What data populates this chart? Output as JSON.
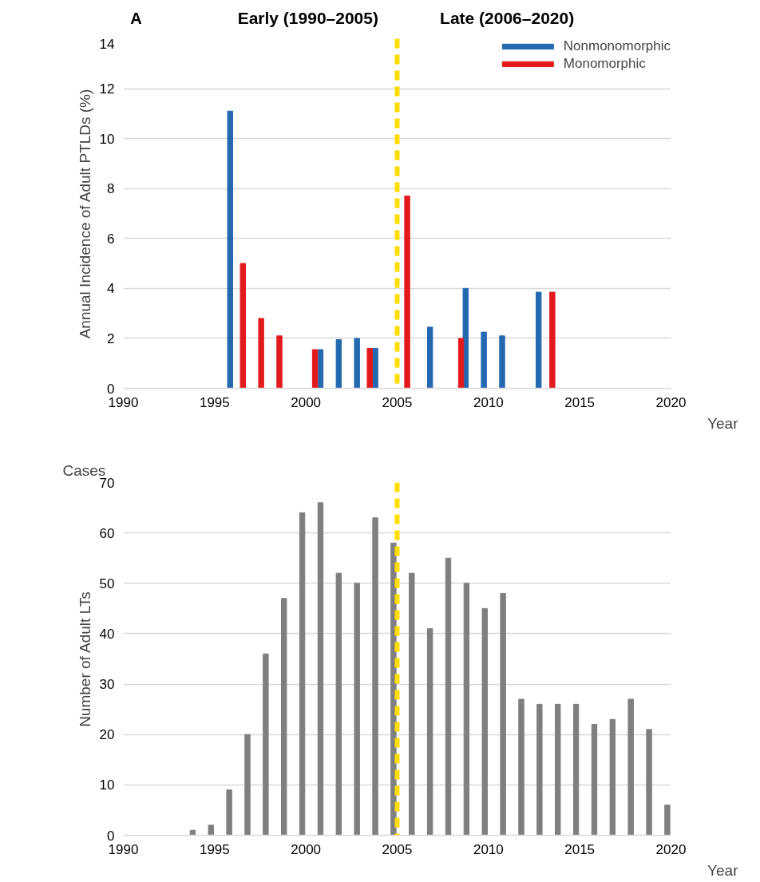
{
  "chart_data": [
    {
      "type": "bar",
      "ylabel": "Annual Incidence of Adult PTLDs (%)",
      "xlabel": "Year",
      "annotations": [
        "A",
        "Early (1990–2005)",
        "Late (2006–2020)"
      ],
      "series": [
        {
          "name": "Nonmonomorphic",
          "color": "#2468b0",
          "x": [
            1995.85,
            2000.8,
            2001.8,
            2002.8,
            2003.8,
            2006.8,
            2008.75,
            2009.75,
            2010.75,
            2012.75
          ],
          "values": [
            11.1,
            1.55,
            1.95,
            2.0,
            1.6,
            2.45,
            4.0,
            2.25,
            2.1,
            3.85
          ]
        },
        {
          "name": "Monomorphic",
          "color": "#e31a1c",
          "x": [
            1996.55,
            1997.55,
            1998.55,
            2000.5,
            2003.5,
            2005.55,
            2008.5,
            2013.5
          ],
          "values": [
            5.0,
            2.8,
            2.1,
            1.55,
            1.6,
            7.7,
            2.0,
            3.85
          ]
        }
      ],
      "ref_lines": [
        {
          "axis": "x",
          "value": 2005,
          "color": "#ffdd00",
          "line_style": "dashed"
        }
      ],
      "xlim": [
        1990,
        2020
      ],
      "xticks": [
        1990,
        1995,
        2000,
        2005,
        2010,
        2015,
        2020
      ],
      "ylim": [
        0,
        14
      ],
      "yticks": [
        0,
        2,
        4,
        6,
        8,
        10,
        12,
        14
      ],
      "grid": "y",
      "legend": "top right"
    },
    {
      "type": "bar",
      "ylabel": "Number of Adult LTs",
      "xlabel": "Year",
      "annotations": [
        "Cases"
      ],
      "series": [
        {
          "color": "#7f7f7f",
          "x": [
            1993.8,
            1994.8,
            1995.8,
            1996.8,
            1997.8,
            1998.8,
            1999.8,
            2000.8,
            2001.8,
            2002.8,
            2003.8,
            2004.8,
            2005.8,
            2006.8,
            2007.8,
            2008.8,
            2009.8,
            2010.8,
            2011.8,
            2012.8,
            2013.8,
            2014.8,
            2015.8,
            2016.8,
            2017.8,
            2018.8,
            2019.8
          ],
          "values": [
            1,
            2,
            9,
            20,
            36,
            47,
            64,
            66,
            52,
            50,
            63,
            58,
            52,
            41,
            55,
            50,
            45,
            48,
            27,
            26,
            26,
            26,
            22,
            23,
            27,
            21,
            6
          ]
        }
      ],
      "ref_lines": [
        {
          "axis": "x",
          "value": 2005,
          "color": "#ffdd00",
          "line_style": "dashed"
        }
      ],
      "xlim": [
        1990,
        2020
      ],
      "xticks": [
        1990,
        1995,
        2000,
        2005,
        2010,
        2015,
        2020
      ],
      "ylim": [
        0,
        70
      ],
      "yticks": [
        0,
        10,
        20,
        30,
        40,
        50,
        60,
        70
      ],
      "grid": "y"
    }
  ]
}
